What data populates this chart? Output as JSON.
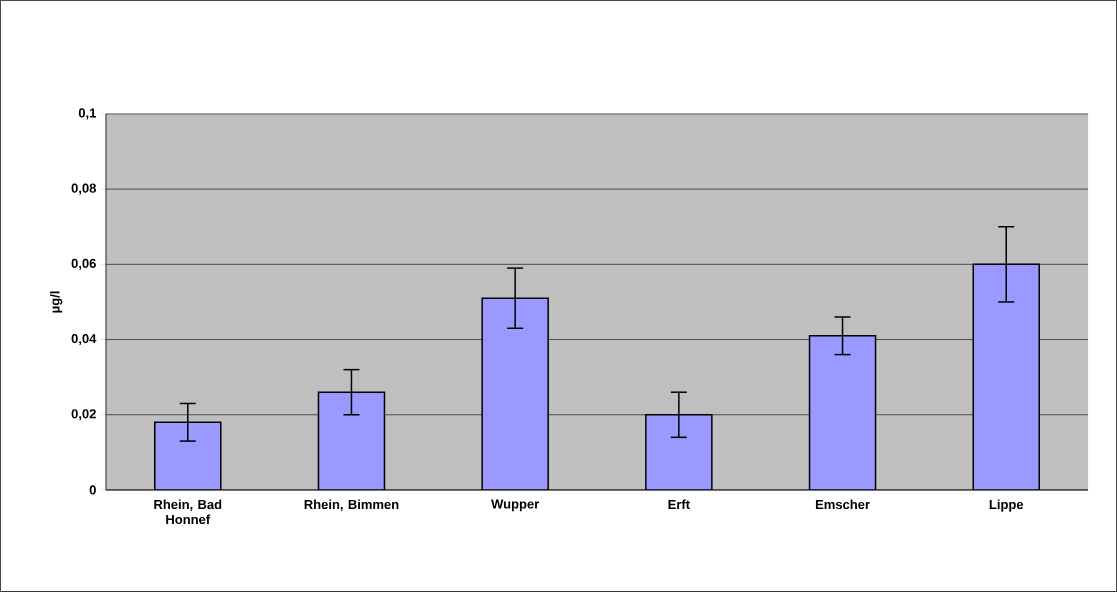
{
  "chart_data": {
    "type": "bar",
    "ylabel": "µg/l",
    "categories": [
      "Rhein, Bad Honnef",
      "Rhein, Bimmen",
      "Wupper",
      "Erft",
      "Emscher",
      "Lippe"
    ],
    "values": [
      0.018,
      0.026,
      0.051,
      0.02,
      0.041,
      0.06
    ],
    "errors": [
      0.005,
      0.006,
      0.008,
      0.006,
      0.005,
      0.01
    ],
    "color": "#9999ff",
    "ylim": [
      0,
      0.1
    ],
    "yticks": [
      {
        "value": 0,
        "label": "0"
      },
      {
        "value": 0.02,
        "label": "0,02"
      },
      {
        "value": 0.04,
        "label": "0,04"
      },
      {
        "value": 0.06,
        "label": "0,06"
      },
      {
        "value": 0.08,
        "label": "0,08"
      },
      {
        "value": 0.1,
        "label": "0,1"
      }
    ],
    "grid": "y"
  }
}
